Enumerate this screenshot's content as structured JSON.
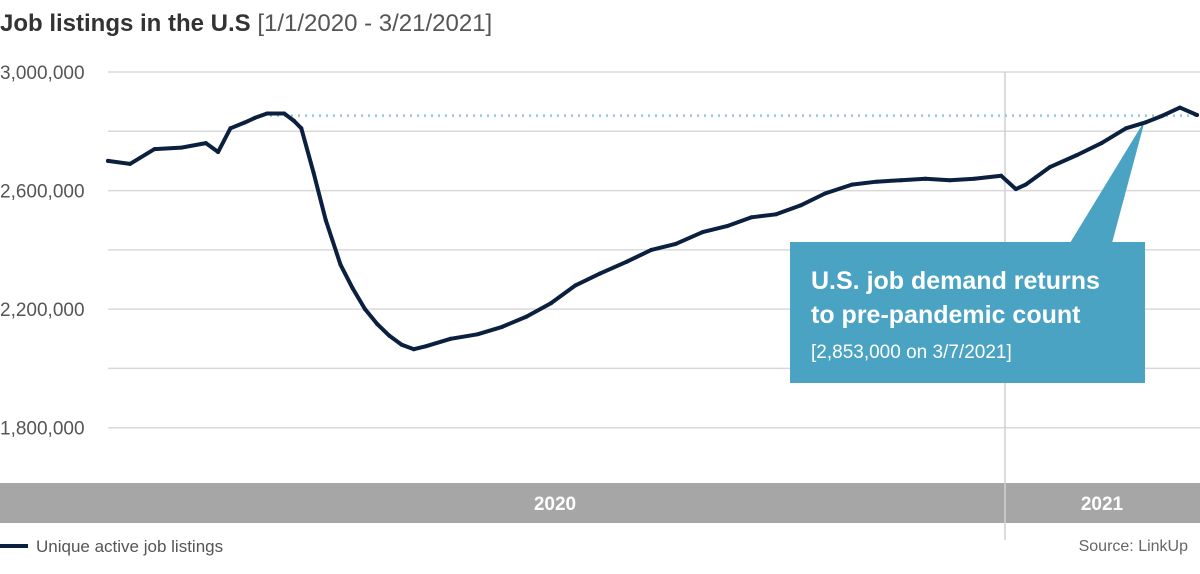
{
  "title": {
    "main": "Job listings in the U.S",
    "sub": "[1/1/2020 - 3/21/2021]"
  },
  "legend": {
    "label": "Unique active job listings"
  },
  "source": "Source: LinkUp",
  "callout": {
    "line1": "U.S. job demand returns",
    "line2": "to pre-pandemic count",
    "detail": "[2,853,000 on 3/7/2021]",
    "color": "#4aa3c2"
  },
  "colors": {
    "line": "#0b1f3f",
    "dotted": "#8ecbd8",
    "band": "#a6a6a6",
    "grid": "#d9d9d9"
  },
  "chart_data": {
    "type": "line",
    "title": "Job listings in the U.S",
    "subtitle": "[1/1/2020 - 3/21/2021]",
    "xlabel": "",
    "ylabel": "",
    "x_range": [
      "2020-01-01",
      "2021-03-21"
    ],
    "ylim": [
      1600000,
      3000000
    ],
    "yticks": [
      3000000,
      2600000,
      2200000,
      1800000
    ],
    "ytick_labels": [
      "3,000,000",
      "2,600,000",
      "2,200,000",
      "1,800,000"
    ],
    "period_labels": [
      "2020",
      "2021"
    ],
    "grid": true,
    "legend_position": "bottom-left",
    "reference_value": 2853000,
    "series": [
      {
        "name": "Unique active job listings",
        "x": [
          "2020-01-01",
          "2020-01-10",
          "2020-01-20",
          "2020-01-31",
          "2020-02-10",
          "2020-02-15",
          "2020-02-20",
          "2020-02-26",
          "2020-03-01",
          "2020-03-06",
          "2020-03-13",
          "2020-03-17",
          "2020-03-20",
          "2020-03-25",
          "2020-03-30",
          "2020-04-05",
          "2020-04-10",
          "2020-04-15",
          "2020-04-20",
          "2020-04-25",
          "2020-04-30",
          "2020-05-05",
          "2020-05-10",
          "2020-05-20",
          "2020-05-31",
          "2020-06-10",
          "2020-06-20",
          "2020-06-30",
          "2020-07-10",
          "2020-07-20",
          "2020-07-31",
          "2020-08-10",
          "2020-08-20",
          "2020-08-31",
          "2020-09-10",
          "2020-09-20",
          "2020-09-30",
          "2020-10-10",
          "2020-10-20",
          "2020-10-31",
          "2020-11-10",
          "2020-11-20",
          "2020-11-30",
          "2020-12-10",
          "2020-12-20",
          "2020-12-31",
          "2021-01-06",
          "2021-01-10",
          "2021-01-20",
          "2021-01-31",
          "2021-02-10",
          "2021-02-20",
          "2021-02-28",
          "2021-03-07",
          "2021-03-14",
          "2021-03-21"
        ],
        "values": [
          2700000,
          2690000,
          2740000,
          2745000,
          2760000,
          2730000,
          2810000,
          2830000,
          2845000,
          2860000,
          2860000,
          2835000,
          2810000,
          2660000,
          2500000,
          2350000,
          2270000,
          2200000,
          2150000,
          2110000,
          2080000,
          2065000,
          2075000,
          2100000,
          2115000,
          2140000,
          2175000,
          2220000,
          2280000,
          2320000,
          2360000,
          2400000,
          2420000,
          2460000,
          2480000,
          2510000,
          2520000,
          2550000,
          2590000,
          2620000,
          2630000,
          2635000,
          2640000,
          2635000,
          2640000,
          2650000,
          2605000,
          2620000,
          2680000,
          2720000,
          2760000,
          2810000,
          2830000,
          2853000,
          2880000,
          2855000
        ]
      }
    ]
  }
}
